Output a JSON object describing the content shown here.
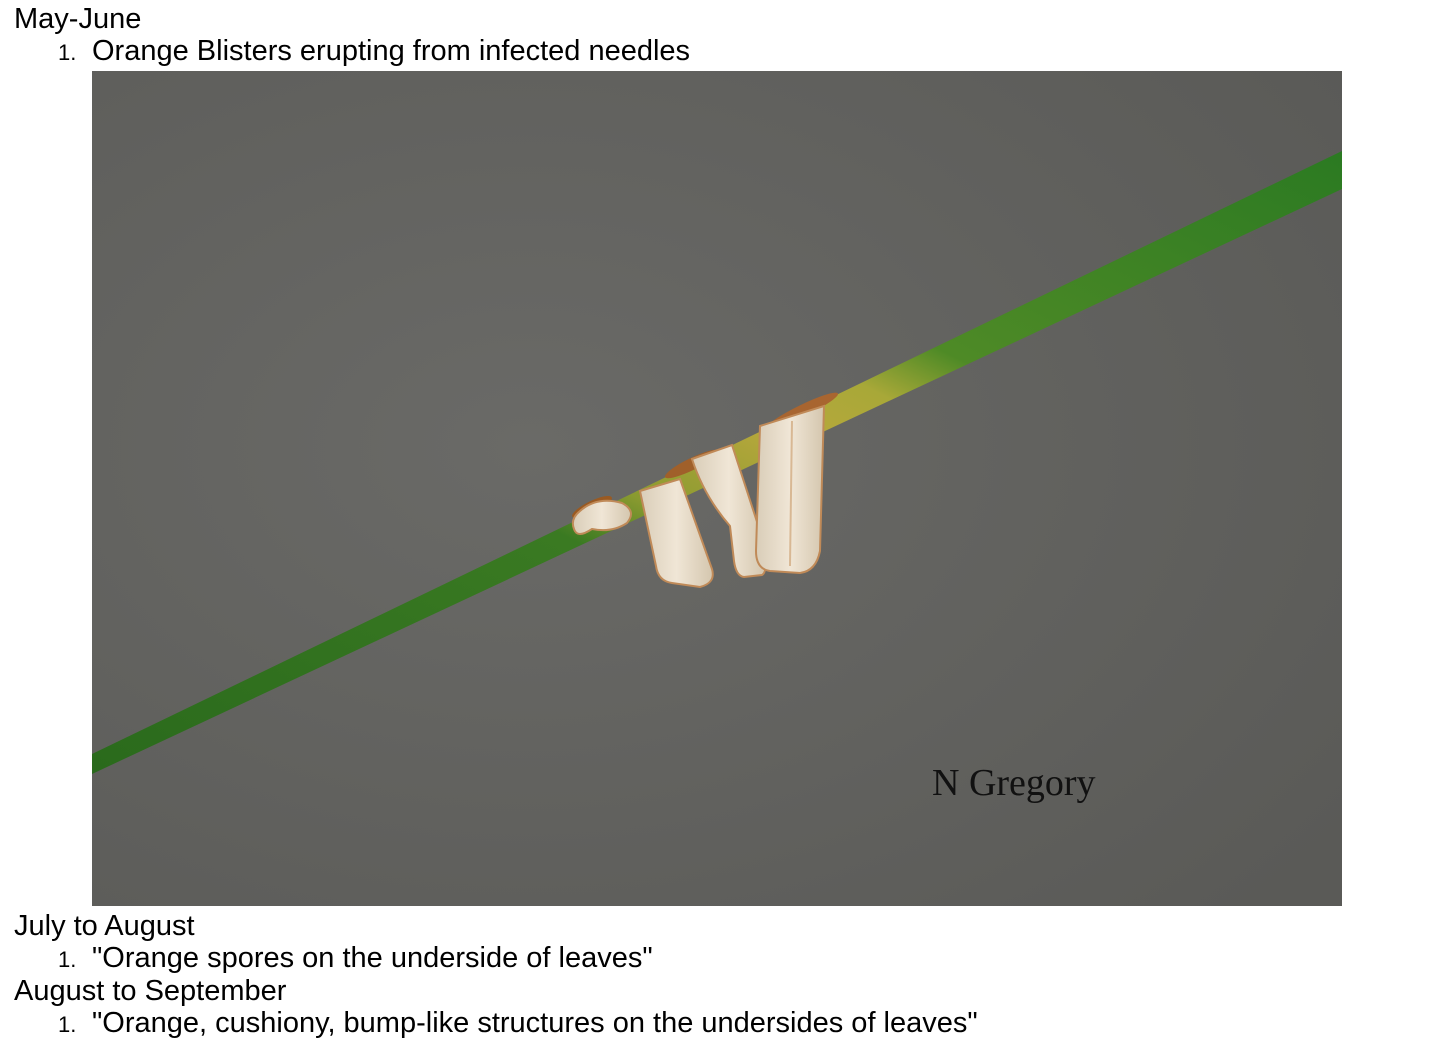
{
  "sections": [
    {
      "heading": "May-June",
      "items": [
        {
          "number": "1.",
          "text": "Orange Blisters erupting from infected needles"
        }
      ]
    },
    {
      "heading": "July to August",
      "items": [
        {
          "number": "1.",
          "text": "\"Orange spores on the underside of leaves\""
        }
      ]
    },
    {
      "heading": "August to September",
      "items": [
        {
          "number": "1.",
          "text": "\"Orange, cushiony, bump-like structures on the undersides of leaves\""
        }
      ]
    }
  ],
  "photo": {
    "credit": "N Gregory",
    "colors": {
      "background": "#636360",
      "needle_green": "#2f6e1f",
      "needle_yellow": "#b7a43a",
      "blister_cream": "#e8ddcc",
      "rust": "#b5652a"
    }
  }
}
